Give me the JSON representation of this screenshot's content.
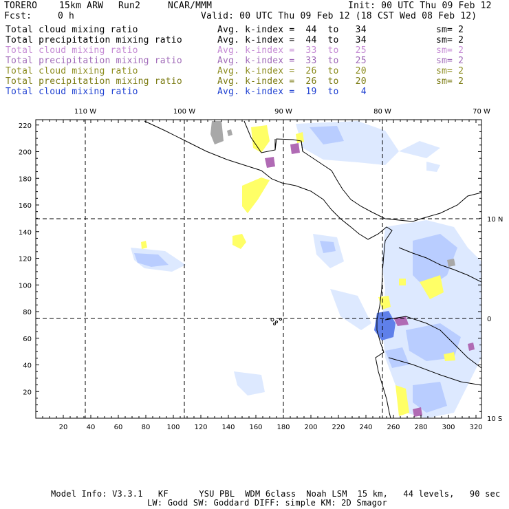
{
  "header": {
    "model": "TORERO",
    "resolution": "15km ARW",
    "run": "Run2",
    "org": "NCAR/MMM",
    "init": "Init: 00 UTC Thu 09 Feb 12",
    "fcst_label": "Fcst:",
    "fcst_value": "0 h",
    "valid": "Valid: 00 UTC Thu 09 Feb 12 (18 CST Wed 08 Feb 12)"
  },
  "legend": [
    {
      "field": "Total cloud mixing ratio",
      "range": "Avg. k-index =  44  to   34",
      "sm": "sm= 2",
      "color": "#000000"
    },
    {
      "field": "Total precipitation mixing ratio",
      "range": "Avg. k-index =  44  to   34",
      "sm": "sm= 2",
      "color": "#000000"
    },
    {
      "field": "Total cloud mixing ratio",
      "range": "Avg. k-index =  33  to   25",
      "sm": "sm= 2",
      "color": "#c58ad4"
    },
    {
      "field": "Total precipitation mixing ratio",
      "range": "Avg. k-index =  33  to   25",
      "sm": "sm= 2",
      "color": "#a06ab8"
    },
    {
      "field": "Total cloud mixing ratio",
      "range": "Avg. k-index =  26  to   20",
      "sm": "sm= 2",
      "color": "#8c8c1e"
    },
    {
      "field": "Total precipitation mixing ratio",
      "range": "Avg. k-index =  26  to   20",
      "sm": "sm= 2",
      "color": "#7a7a10"
    },
    {
      "field": "Total cloud mixing ratio",
      "range": "Avg. k-index =  19  to    4",
      "sm": "",
      "color": "#1d3fd1"
    }
  ],
  "axes": {
    "top_lon": [
      "110 W",
      "100 W",
      "90 W",
      "80 W",
      "70 W"
    ],
    "right_lat": [
      "10 N",
      "0",
      "10 S"
    ],
    "y_ticks": [
      "220",
      "200",
      "180",
      "160",
      "140",
      "120",
      "100",
      "80",
      "60",
      "40",
      "20"
    ],
    "x_ticks": [
      "20",
      "40",
      "60",
      "80",
      "100",
      "120",
      "140",
      "160",
      "180",
      "200",
      "220",
      "240",
      "260",
      "280",
      "300",
      "320"
    ]
  },
  "colors": {
    "cloud_light": "#dbe8ff",
    "cloud_mid": "#b7ccff",
    "cloud_deep": "#6f8ef0",
    "yellow": "#ffff7a",
    "purple": "#b46ab8",
    "gray": "#a8a8a8"
  },
  "footer": {
    "line1": "Model Info: V3.3.1   KF      YSU PBL  WDM 6class  Noah LSM  15 km,   44 levels,   90 sec",
    "line2": "LW: Godd SW: Goddard DIFF: simple KM: 2D Smagor"
  }
}
